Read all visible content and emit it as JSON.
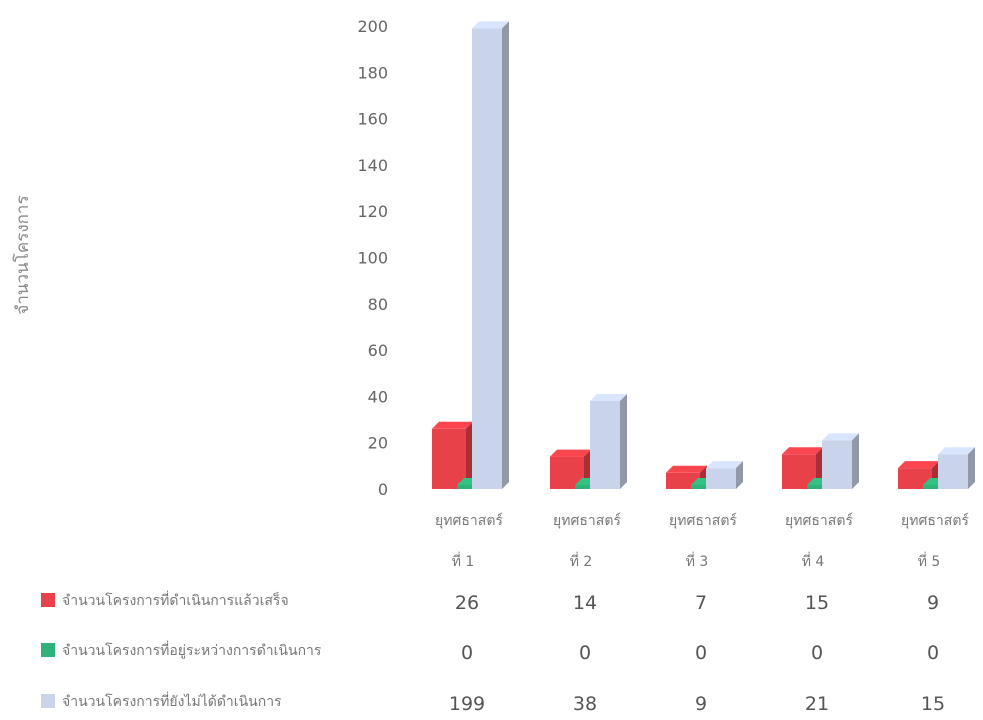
{
  "chart_data": {
    "type": "bar",
    "ylabel": "จำนวนโครงการ",
    "ylim": [
      0,
      200
    ],
    "yticks": [
      0,
      20,
      40,
      60,
      80,
      100,
      120,
      140,
      160,
      180,
      200
    ],
    "categories": [
      {
        "line1": "ยุทศธาสตร์",
        "line2": "ที่ 1"
      },
      {
        "line1": "ยุทศธาสตร์",
        "line2": "ที่ 2"
      },
      {
        "line1": "ยุทศธาสตร์",
        "line2": "ที่ 3"
      },
      {
        "line1": "ยุทศธาสตร์",
        "line2": "ที่ 4"
      },
      {
        "line1": "ยุทศธาสตร์",
        "line2": "ที่ 5"
      }
    ],
    "series": [
      {
        "name": "จำนวนโครงการที่ดำเนินการแล้วเสร็จ",
        "color": "#e8414a",
        "values": [
          26,
          14,
          7,
          15,
          9
        ]
      },
      {
        "name": "จำนวนโครงการที่อยู่ระหว่างการดำเนินการ",
        "color": "#2fb37a",
        "values": [
          0,
          0,
          0,
          0,
          0
        ]
      },
      {
        "name": "จำนวนโครงการที่ยังไม่ได้ดำเนินการ",
        "color": "#c9d4ea",
        "values": [
          199,
          38,
          9,
          21,
          15
        ]
      }
    ],
    "legend": "bottom-left data table"
  }
}
